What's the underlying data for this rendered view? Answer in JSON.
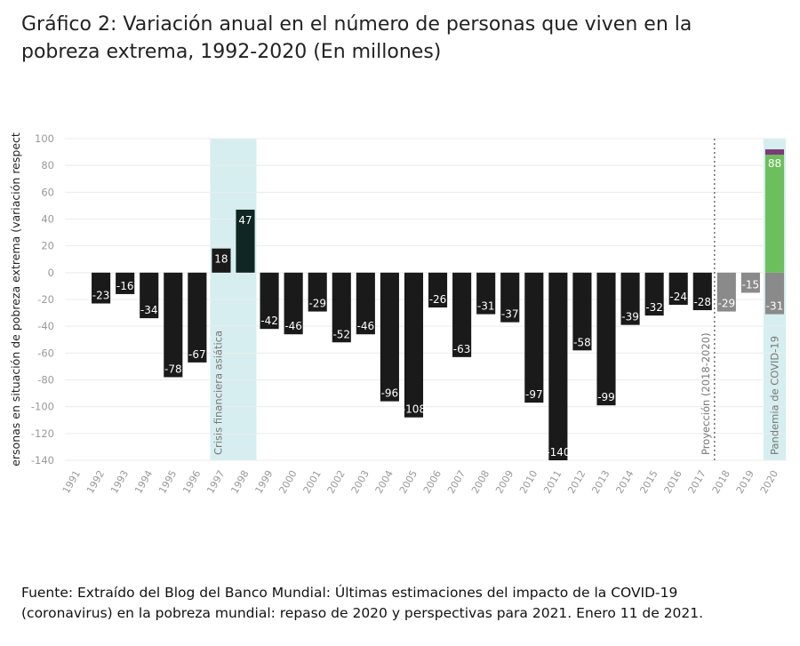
{
  "title_lines": [
    "Gráfico 2: Variación anual en el número de personas que viven en la",
    "pobreza extrema, 1992-2020 (En millones)"
  ],
  "source_lines": [
    "Fuente: Extraído del Blog del Banco Mundial: Últimas estimaciones del impacto de la COVID-19",
    "(coronavirus) en la pobreza mundial: repaso de 2020 y perspectivas para 2021. Enero 11 de 2021."
  ],
  "chart_data": {
    "type": "bar",
    "ylabel": "ersonas en situación de pobreza extrema (variación respect",
    "ylim": [
      -140,
      100
    ],
    "yticks": [
      100,
      80,
      60,
      40,
      20,
      0,
      -20,
      -40,
      -60,
      -80,
      -100,
      -120,
      -140
    ],
    "grid": true,
    "categories": [
      "1991",
      "1992",
      "1993",
      "1994",
      "1995",
      "1996",
      "1997",
      "1998",
      "1999",
      "2000",
      "2001",
      "2002",
      "2003",
      "2004",
      "2005",
      "2006",
      "2007",
      "2008",
      "2009",
      "2010",
      "2011",
      "2012",
      "2013",
      "2014",
      "2015",
      "2016",
      "2017",
      "2018",
      "2019",
      "2020"
    ],
    "values": [
      null,
      -23,
      -16,
      -34,
      -78,
      -67,
      18,
      47,
      -42,
      -46,
      -29,
      -52,
      -46,
      -96,
      -108,
      -26,
      -63,
      -31,
      -37,
      -97,
      -140,
      -58,
      -99,
      -39,
      -32,
      -24,
      -28,
      -29,
      -15,
      -31
    ],
    "value_labels": [
      "",
      "-23",
      "-16",
      "-34",
      "-78",
      "-67",
      "18",
      "47",
      "-42",
      "-46",
      "-29",
      "-52",
      "-46",
      "-96",
      "-108",
      "-26",
      "-63",
      "-31",
      "-37",
      "-97",
      "-140",
      "-58",
      "-99",
      "-39",
      "-32",
      "-24",
      "-28",
      "-29",
      "-15",
      "-31"
    ],
    "projection_years": [
      "2018",
      "2019",
      "2020"
    ],
    "covid_2020_increase": {
      "value": 88,
      "label": "88",
      "additional_top": 4
    },
    "annotations": [
      {
        "text": "Crisis financiera asiática",
        "years": [
          "1997",
          "1998"
        ],
        "style": "band"
      },
      {
        "text": "Proyección (2018-2020)",
        "at": "2018",
        "style": "dotted-line"
      },
      {
        "text": "Pandemia de COVID-19",
        "years": [
          "2020"
        ],
        "style": "band"
      }
    ],
    "colors": {
      "bar": "#1a1a1a",
      "bar_1998": "#0f2622",
      "projection": "#8a8a8a",
      "covid_increase": "#6cbf5c",
      "covid_top": "#7b3a78",
      "band": "#d6eeef",
      "grid": "#ececec",
      "label": "#ffffff",
      "tick": "#999999"
    }
  }
}
